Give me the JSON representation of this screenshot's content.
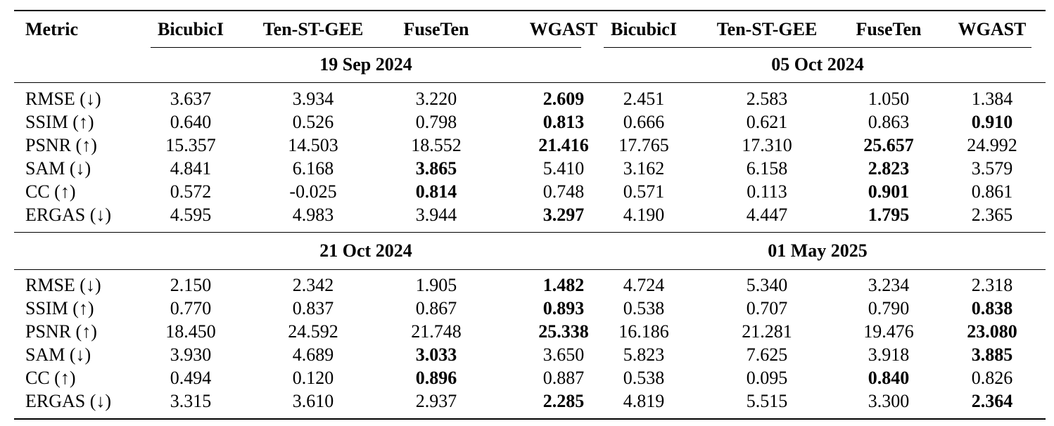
{
  "header": {
    "metric": "Metric",
    "methods_left": [
      "BicubicI",
      "Ten-ST-GEE",
      "FuseTen",
      "WGAST"
    ],
    "methods_right": [
      "BicubicI",
      "Ten-ST-GEE",
      "FuseTen",
      "WGAST"
    ]
  },
  "dates": {
    "d1": "19 Sep 2024",
    "d2": "05 Oct 2024",
    "d3": "21 Oct 2024",
    "d4": "01 May 2025"
  },
  "block1": [
    {
      "metric": "RMSE (↓)",
      "values": [
        "3.637",
        "3.934",
        "3.220",
        "2.609",
        "2.451",
        "2.583",
        "1.050",
        "1.384"
      ]
    },
    {
      "metric": "SSIM (↑)",
      "values": [
        "0.640",
        "0.526",
        "0.798",
        "0.813",
        "0.666",
        "0.621",
        "0.863",
        "0.910"
      ]
    },
    {
      "metric": "PSNR (↑)",
      "values": [
        "15.357",
        "14.503",
        "18.552",
        "21.416",
        "17.765",
        "17.310",
        "25.657",
        "24.992"
      ]
    },
    {
      "metric": "SAM (↓)",
      "values": [
        "4.841",
        "6.168",
        "3.865",
        "5.410",
        "3.162",
        "6.158",
        "2.823",
        "3.579"
      ]
    },
    {
      "metric": "CC (↑)",
      "values": [
        "0.572",
        "-0.025",
        "0.814",
        "0.748",
        "0.571",
        "0.113",
        "0.901",
        "0.861"
      ]
    },
    {
      "metric": "ERGAS (↓)",
      "values": [
        "4.595",
        "4.983",
        "3.944",
        "3.297",
        "4.190",
        "4.447",
        "1.795",
        "2.365"
      ]
    }
  ],
  "block2": [
    {
      "metric": "RMSE (↓)",
      "values": [
        "2.150",
        "2.342",
        "1.905",
        "1.482",
        "4.724",
        "5.340",
        "3.234",
        "2.318"
      ]
    },
    {
      "metric": "SSIM (↑)",
      "values": [
        "0.770",
        "0.837",
        "0.867",
        "0.893",
        "0.538",
        "0.707",
        "0.790",
        "0.838"
      ]
    },
    {
      "metric": "PSNR (↑)",
      "values": [
        "18.450",
        "24.592",
        "21.748",
        "25.338",
        "16.186",
        "21.281",
        "19.476",
        "23.080"
      ]
    },
    {
      "metric": "SAM (↓)",
      "values": [
        "3.930",
        "4.689",
        "3.033",
        "3.650",
        "5.823",
        "7.625",
        "3.918",
        "3.885"
      ]
    },
    {
      "metric": "CC (↑)",
      "values": [
        "0.494",
        "0.120",
        "0.896",
        "0.887",
        "0.538",
        "0.095",
        "0.840",
        "0.826"
      ]
    },
    {
      "metric": "ERGAS (↓)",
      "values": [
        "3.315",
        "3.610",
        "2.937",
        "2.285",
        "4.819",
        "5.515",
        "3.300",
        "2.364"
      ]
    }
  ],
  "bold_cells": {
    "block1": [
      [
        3
      ],
      [
        3,
        7
      ],
      [
        3,
        6
      ],
      [
        2,
        6
      ],
      [
        2,
        6
      ],
      [
        3,
        6
      ]
    ],
    "block2": [
      [
        3
      ],
      [
        3,
        7
      ],
      [
        3,
        7
      ],
      [
        2,
        7
      ],
      [
        2,
        6
      ],
      [
        3,
        7
      ]
    ]
  }
}
